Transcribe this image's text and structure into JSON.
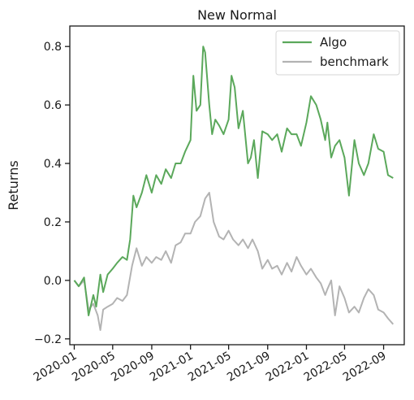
{
  "chart_data": {
    "type": "line",
    "title": "New Normal",
    "xlabel": "",
    "ylabel": "Returns",
    "xlim": [
      "2019-12-18",
      "2022-11-05"
    ],
    "ylim": [
      -0.22,
      0.87
    ],
    "grid": false,
    "legend": "top-right",
    "x_ticks": [
      "2020-01",
      "2020-05",
      "2020-09",
      "2021-01",
      "2021-05",
      "2021-09",
      "2022-01",
      "2022-05",
      "2022-09"
    ],
    "y_ticks": [
      -0.2,
      0.0,
      0.2,
      0.4,
      0.6,
      0.8
    ],
    "y_tick_labels": [
      "−0.2",
      "0.0",
      "0.2",
      "0.4",
      "0.6",
      "0.8"
    ],
    "series": [
      {
        "name": "Algo",
        "color": "#5ba85b",
        "x": [
          "2020-01-01",
          "2020-01-15",
          "2020-02-01",
          "2020-02-15",
          "2020-03-01",
          "2020-03-10",
          "2020-03-23",
          "2020-04-01",
          "2020-04-15",
          "2020-05-01",
          "2020-05-15",
          "2020-06-01",
          "2020-06-15",
          "2020-06-25",
          "2020-07-05",
          "2020-07-15",
          "2020-08-01",
          "2020-08-15",
          "2020-09-01",
          "2020-09-15",
          "2020-10-01",
          "2020-10-15",
          "2020-11-01",
          "2020-11-15",
          "2020-12-01",
          "2020-12-15",
          "2021-01-01",
          "2021-01-10",
          "2021-01-20",
          "2021-02-01",
          "2021-02-10",
          "2021-02-16",
          "2021-03-01",
          "2021-03-10",
          "2021-03-20",
          "2021-04-01",
          "2021-04-15",
          "2021-05-01",
          "2021-05-10",
          "2021-05-20",
          "2021-06-01",
          "2021-06-15",
          "2021-07-01",
          "2021-07-10",
          "2021-07-20",
          "2021-08-01",
          "2021-08-15",
          "2021-09-01",
          "2021-09-15",
          "2021-10-01",
          "2021-10-15",
          "2021-11-01",
          "2021-11-15",
          "2021-12-01",
          "2021-12-15",
          "2022-01-01",
          "2022-01-15",
          "2022-02-01",
          "2022-02-15",
          "2022-03-01",
          "2022-03-08",
          "2022-03-20",
          "2022-04-01",
          "2022-04-15",
          "2022-05-01",
          "2022-05-15",
          "2022-06-01",
          "2022-06-15",
          "2022-07-01",
          "2022-07-15",
          "2022-08-01",
          "2022-08-15",
          "2022-09-01",
          "2022-09-15",
          "2022-10-01"
        ],
        "values": [
          0.0,
          -0.02,
          0.01,
          -0.12,
          -0.05,
          -0.09,
          0.02,
          -0.04,
          0.02,
          0.04,
          0.06,
          0.08,
          0.07,
          0.14,
          0.29,
          0.25,
          0.3,
          0.36,
          0.3,
          0.36,
          0.33,
          0.38,
          0.35,
          0.4,
          0.4,
          0.44,
          0.48,
          0.7,
          0.58,
          0.6,
          0.8,
          0.78,
          0.6,
          0.5,
          0.55,
          0.53,
          0.5,
          0.55,
          0.7,
          0.66,
          0.52,
          0.58,
          0.4,
          0.42,
          0.48,
          0.35,
          0.51,
          0.5,
          0.48,
          0.5,
          0.44,
          0.52,
          0.5,
          0.5,
          0.46,
          0.54,
          0.63,
          0.6,
          0.55,
          0.48,
          0.54,
          0.42,
          0.46,
          0.48,
          0.42,
          0.29,
          0.48,
          0.4,
          0.36,
          0.4,
          0.5,
          0.45,
          0.44,
          0.36,
          0.35
        ]
      },
      {
        "name": "benchmark",
        "color": "#b3b3b3",
        "x": [
          "2020-01-01",
          "2020-01-15",
          "2020-02-01",
          "2020-02-15",
          "2020-03-01",
          "2020-03-15",
          "2020-03-23",
          "2020-04-01",
          "2020-04-15",
          "2020-05-01",
          "2020-05-15",
          "2020-06-01",
          "2020-06-15",
          "2020-07-01",
          "2020-07-15",
          "2020-08-01",
          "2020-08-15",
          "2020-09-01",
          "2020-09-15",
          "2020-10-01",
          "2020-10-15",
          "2020-11-01",
          "2020-11-15",
          "2020-12-01",
          "2020-12-15",
          "2021-01-01",
          "2021-01-15",
          "2021-02-01",
          "2021-02-16",
          "2021-03-01",
          "2021-03-15",
          "2021-04-01",
          "2021-04-15",
          "2021-05-01",
          "2021-05-15",
          "2021-06-01",
          "2021-06-15",
          "2021-07-01",
          "2021-07-15",
          "2021-08-01",
          "2021-08-15",
          "2021-09-01",
          "2021-09-15",
          "2021-10-01",
          "2021-10-15",
          "2021-11-01",
          "2021-11-15",
          "2021-12-01",
          "2021-12-15",
          "2022-01-01",
          "2022-01-15",
          "2022-02-01",
          "2022-02-15",
          "2022-03-01",
          "2022-03-08",
          "2022-03-20",
          "2022-04-01",
          "2022-04-15",
          "2022-05-01",
          "2022-05-15",
          "2022-06-01",
          "2022-06-15",
          "2022-07-01",
          "2022-07-15",
          "2022-08-01",
          "2022-08-15",
          "2022-09-01",
          "2022-09-15",
          "2022-10-01"
        ],
        "values": [
          0.0,
          -0.02,
          0.0,
          -0.1,
          -0.08,
          -0.12,
          -0.17,
          -0.1,
          -0.09,
          -0.08,
          -0.06,
          -0.07,
          -0.05,
          0.05,
          0.11,
          0.05,
          0.08,
          0.06,
          0.08,
          0.07,
          0.1,
          0.06,
          0.12,
          0.13,
          0.16,
          0.16,
          0.2,
          0.22,
          0.28,
          0.3,
          0.2,
          0.15,
          0.14,
          0.17,
          0.14,
          0.12,
          0.14,
          0.11,
          0.14,
          0.1,
          0.04,
          0.07,
          0.04,
          0.05,
          0.02,
          0.06,
          0.03,
          0.08,
          0.05,
          0.02,
          0.04,
          0.01,
          -0.01,
          -0.05,
          -0.03,
          0.0,
          -0.12,
          -0.02,
          -0.06,
          -0.11,
          -0.09,
          -0.11,
          -0.06,
          -0.03,
          -0.05,
          -0.1,
          -0.11,
          -0.13,
          -0.15
        ]
      }
    ]
  }
}
